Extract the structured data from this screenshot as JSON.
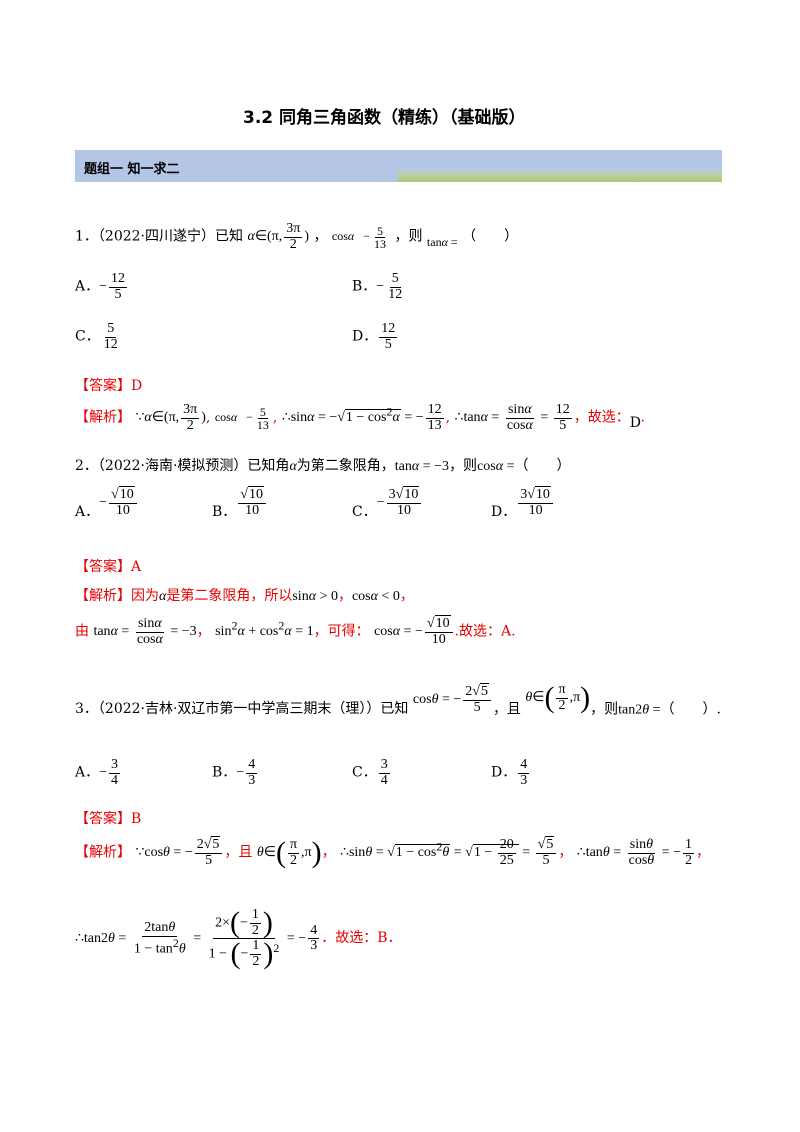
{
  "title": "3.2  同角三角函数（精练）（基础版）",
  "section": "题组一    知一求二",
  "q1": {
    "stem_a": "1．（2022·四川遂宁）已知",
    "stem_b": "，",
    "stem_c": "，则",
    "stem_d": "（　　）",
    "optA_label": "A．",
    "optB_label": "B．",
    "optC_label": "C．",
    "optD_label": "D．",
    "answer": "【答案】D",
    "analysis_label": "【解析】",
    "analysis_tail": "，故选：",
    "analysis_choice": "D"
  },
  "q2": {
    "stem_a": "2．（2022·海南·模拟预测）已知角",
    "stem_b": "为第二象限角，",
    "stem_c": "，则",
    "stem_d": "（　　）",
    "optA_label": "A．",
    "optB_label": "B．",
    "optC_label": "C．",
    "optD_label": "D．",
    "answer": "【答案】A",
    "analysis_label": "【解析】",
    "analysis_text": "因为",
    "analysis_text2": "是第二象限角，所以",
    "line2_a": "由",
    "line2_b": "，可得：",
    "line2_c": ".故选：A."
  },
  "q3": {
    "stem_a": "3．（2022·吉林·双辽市第一中学高三期末（理））已知",
    "stem_b": "，且",
    "stem_c": "，则",
    "stem_d": "（　　）.",
    "optA_label": "A．",
    "optB_label": "B．",
    "optC_label": "C．",
    "optD_label": "D．",
    "answer": "【答案】B",
    "analysis_label": "【解析】",
    "and": "，且",
    "tail": "．故选：B．"
  }
}
